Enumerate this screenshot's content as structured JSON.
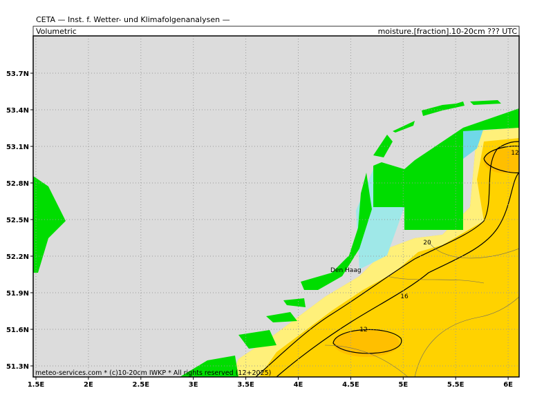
{
  "header": {
    "title": "CETA — Inst. f. Wetter- und Klimafolgenanalysen —",
    "left_label": "Volumetric",
    "right_label": "moisture.[fraction].10-20cm ??? UTC"
  },
  "map": {
    "lat_labels": [
      "53.7N",
      "53.4N",
      "53.1N",
      "52.8N",
      "52.5N",
      "52.2N",
      "51.9N",
      "51.6N",
      "51.3N"
    ],
    "lon_labels": [
      "1.5E",
      "2E",
      "2.5E",
      "3E",
      "3.5E",
      "4E",
      "4.5E",
      "5E",
      "5.5E",
      "6E"
    ],
    "contour_labels": [
      "12",
      "20",
      "16",
      "12"
    ],
    "place": "Den Haag",
    "footer": "meteo-services.com * (c)10-20cm IWKP * All rights reserved (12+2025)"
  }
}
